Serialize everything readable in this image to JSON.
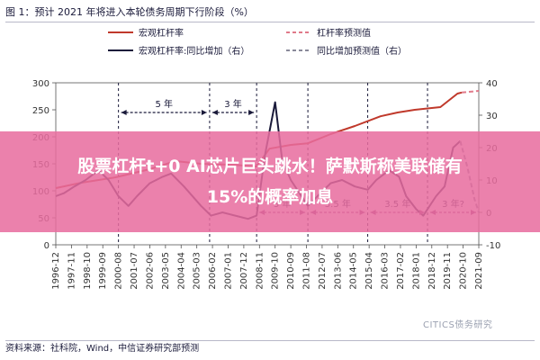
{
  "figure_title": "图 1：预计 2021 年将进入本轮债务周期下行阶段（%）",
  "source": "资料来源：社科院，Wind，中信证券研究部预测",
  "watermark": "CITICS债务研究",
  "banner": {
    "line1": "股票杠杆t+0 AI芯片巨头跳水！萨默斯称美联储有",
    "line2": "15%的概率加息"
  },
  "legend": [
    {
      "label": "宏观杠杆率",
      "color": "#c0392b",
      "dash": false
    },
    {
      "label": "杠杆率预测值",
      "color": "#e07a8a",
      "dash": true
    },
    {
      "label": "宏观杠杆率:同比增加（右）",
      "color": "#1a1a3a",
      "dash": false
    },
    {
      "label": "同比增加预测值（右）",
      "color": "#8a8a9a",
      "dash": true
    }
  ],
  "annotations": [
    {
      "text": "5 年",
      "x_from": "2000-08",
      "x_to": "2005-12",
      "y_axis": "left",
      "y": 245
    },
    {
      "text": "3 年",
      "x_from": "2005-12",
      "x_to": "2008-09",
      "y_axis": "left",
      "y": 245
    },
    {
      "text": "3 年",
      "x_from": "2008-09",
      "x_to": "2011-09",
      "y_axis": "left",
      "y": 60
    },
    {
      "text": "3.5 年",
      "x_from": "2011-09",
      "x_to": "2015-03",
      "y_axis": "left",
      "y": 60
    },
    {
      "text": "3.5 年",
      "x_from": "2015-03",
      "x_to": "2018-09",
      "y_axis": "left",
      "y": 60
    },
    {
      "text": "3 年?",
      "x_from": "2018-09",
      "x_to": "2021-09",
      "y_axis": "left",
      "y": 60
    }
  ],
  "chart_data": {
    "type": "line",
    "x_ticks": [
      "1996-12",
      "1997-11",
      "1998-10",
      "1999-09",
      "2000-08",
      "2001-07",
      "2002-06",
      "2003-05",
      "2004-04",
      "2005-03",
      "2006-02",
      "2007-01",
      "2007-12",
      "2008-11",
      "2009-10",
      "2010-09",
      "2011-08",
      "2012-07",
      "2013-06",
      "2014-05",
      "2015-04",
      "2016-03",
      "2017-02",
      "2018-01",
      "2018-12",
      "2019-11",
      "2020-10",
      "2021-09"
    ],
    "y_left": {
      "ticks": [
        0,
        50,
        100,
        150,
        200,
        250,
        300
      ],
      "range": [
        0,
        300
      ]
    },
    "y_right": {
      "ticks": [
        -10,
        0,
        10,
        20,
        30,
        40
      ],
      "range": [
        -10,
        40
      ]
    },
    "vertical_lines": [
      "2000-08",
      "2005-12",
      "2008-09",
      "2011-09",
      "2015-03",
      "2018-09"
    ],
    "series": [
      {
        "name": "宏观杠杆率",
        "axis": "left",
        "color": "#c0392b",
        "dash": false,
        "points": [
          [
            "1996-12",
            105
          ],
          [
            "1998-06",
            115
          ],
          [
            "2000-06",
            125
          ],
          [
            "2002-06",
            140
          ],
          [
            "2003-12",
            155
          ],
          [
            "2005-06",
            150
          ],
          [
            "2007-06",
            148
          ],
          [
            "2008-09",
            145
          ],
          [
            "2009-06",
            178
          ],
          [
            "2010-09",
            185
          ],
          [
            "2011-09",
            188
          ],
          [
            "2013-01",
            205
          ],
          [
            "2014-06",
            220
          ],
          [
            "2015-12",
            238
          ],
          [
            "2016-12",
            245
          ],
          [
            "2017-12",
            250
          ],
          [
            "2019-06",
            255
          ],
          [
            "2020-06",
            280
          ],
          [
            "2020-09",
            282
          ]
        ]
      },
      {
        "name": "杠杆率预测值",
        "axis": "left",
        "color": "#e07a8a",
        "dash": true,
        "points": [
          [
            "2020-09",
            282
          ],
          [
            "2021-09",
            285
          ]
        ]
      },
      {
        "name": "宏观杠杆率:同比增加（右）",
        "axis": "right",
        "color": "#1a1a3a",
        "dash": false,
        "points": [
          [
            "1996-12",
            5
          ],
          [
            "1997-06",
            6
          ],
          [
            "1998-01",
            8
          ],
          [
            "1998-09",
            10
          ],
          [
            "1999-06",
            13
          ],
          [
            "2000-01",
            10
          ],
          [
            "2000-08",
            5
          ],
          [
            "2001-03",
            2
          ],
          [
            "2001-09",
            5
          ],
          [
            "2002-06",
            9
          ],
          [
            "2003-03",
            11
          ],
          [
            "2003-09",
            12
          ],
          [
            "2004-06",
            8
          ],
          [
            "2005-06",
            2
          ],
          [
            "2006-01",
            -1
          ],
          [
            "2006-09",
            0
          ],
          [
            "2007-06",
            -1
          ],
          [
            "2008-03",
            -2
          ],
          [
            "2008-09",
            -1
          ],
          [
            "2009-03",
            18
          ],
          [
            "2009-10",
            34
          ],
          [
            "2010-03",
            16
          ],
          [
            "2010-09",
            10
          ],
          [
            "2011-03",
            6
          ],
          [
            "2011-09",
            2
          ],
          [
            "2012-06",
            6
          ],
          [
            "2013-01",
            9
          ],
          [
            "2013-09",
            10
          ],
          [
            "2014-06",
            8
          ],
          [
            "2015-03",
            7
          ],
          [
            "2015-09",
            10
          ],
          [
            "2016-06",
            13
          ],
          [
            "2017-01",
            11
          ],
          [
            "2017-06",
            5
          ],
          [
            "2018-01",
            1
          ],
          [
            "2018-06",
            -1
          ],
          [
            "2018-09",
            1
          ],
          [
            "2019-03",
            5
          ],
          [
            "2019-09",
            8
          ],
          [
            "2020-03",
            20
          ],
          [
            "2020-08",
            22
          ]
        ]
      },
      {
        "name": "同比增加预测值（右）",
        "axis": "right",
        "color": "#8a8a9a",
        "dash": true,
        "points": [
          [
            "2020-08",
            22
          ],
          [
            "2021-01",
            14
          ],
          [
            "2021-06",
            4
          ],
          [
            "2021-09",
            0
          ]
        ]
      }
    ]
  }
}
